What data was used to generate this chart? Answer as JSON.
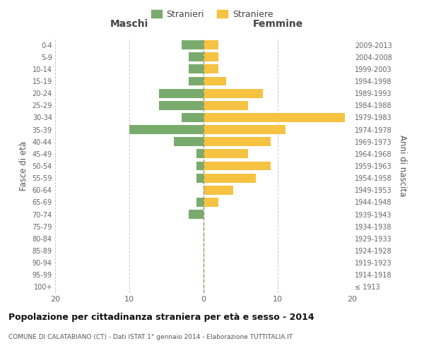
{
  "age_groups": [
    "100+",
    "95-99",
    "90-94",
    "85-89",
    "80-84",
    "75-79",
    "70-74",
    "65-69",
    "60-64",
    "55-59",
    "50-54",
    "45-49",
    "40-44",
    "35-39",
    "30-34",
    "25-29",
    "20-24",
    "15-19",
    "10-14",
    "5-9",
    "0-4"
  ],
  "birth_years": [
    "≤ 1913",
    "1914-1918",
    "1919-1923",
    "1924-1928",
    "1929-1933",
    "1934-1938",
    "1939-1943",
    "1944-1948",
    "1949-1953",
    "1954-1958",
    "1959-1963",
    "1964-1968",
    "1969-1973",
    "1974-1978",
    "1979-1983",
    "1984-1988",
    "1989-1993",
    "1994-1998",
    "1999-2003",
    "2004-2008",
    "2009-2013"
  ],
  "males": [
    0,
    0,
    0,
    0,
    0,
    0,
    2,
    1,
    0,
    1,
    1,
    1,
    4,
    10,
    3,
    6,
    6,
    2,
    2,
    2,
    3
  ],
  "females": [
    0,
    0,
    0,
    0,
    0,
    0,
    0,
    2,
    4,
    7,
    9,
    6,
    9,
    11,
    19,
    6,
    8,
    3,
    2,
    2,
    2
  ],
  "male_color": "#7aab6e",
  "female_color": "#f5c242",
  "male_label": "Stranieri",
  "female_label": "Straniere",
  "title": "Popolazione per cittadinanza straniera per età e sesso - 2014",
  "subtitle": "COMUNE DI CALATABIANO (CT) - Dati ISTAT 1° gennaio 2014 - Elaborazione TUTTITALIA.IT",
  "xlabel_left": "Maschi",
  "xlabel_right": "Femmine",
  "ylabel_left": "Fasce di età",
  "ylabel_right": "Anni di nascita",
  "xlim": 20,
  "background_color": "#ffffff",
  "grid_color": "#cccccc"
}
